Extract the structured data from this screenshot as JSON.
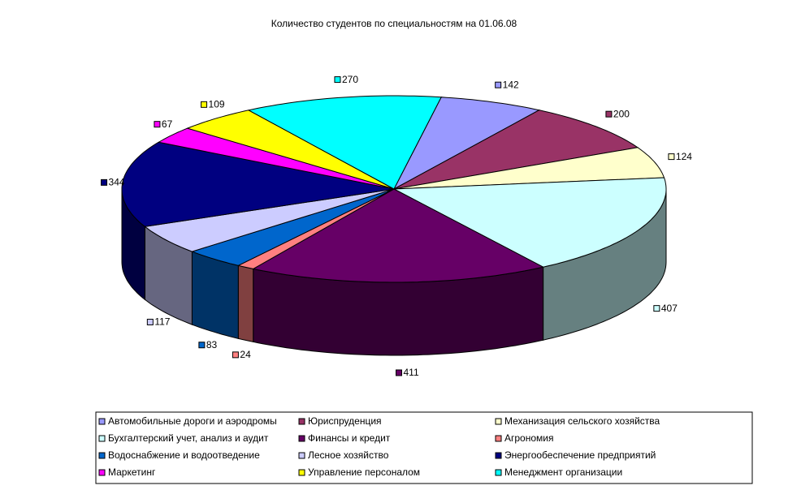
{
  "chart_data": {
    "type": "pie3d",
    "title": "Количество студентов по специальностям на 01.06.08",
    "categories": [
      "Автомобильные дороги и аэродромы",
      "Юриспруденция",
      "Механизация сельского хозяйства",
      "Бухгалтерский учет, анализ и аудит",
      "Финансы и кредит",
      "Агрономия",
      "Водоснабжение и водоотведение",
      "Лесное хозяйство",
      "Энергообеспечение предприятий",
      "Маркетинг",
      "Управление персоналом",
      "Менеджмент организации"
    ],
    "values": [
      142,
      200,
      124,
      407,
      411,
      24,
      83,
      117,
      344,
      67,
      109,
      270
    ],
    "colors": [
      "#9999ff",
      "#993366",
      "#ffffcc",
      "#ccffff",
      "#660066",
      "#ff8080",
      "#0066cc",
      "#ccccff",
      "#000080",
      "#ff00ff",
      "#ffff00",
      "#00ffff"
    ]
  }
}
